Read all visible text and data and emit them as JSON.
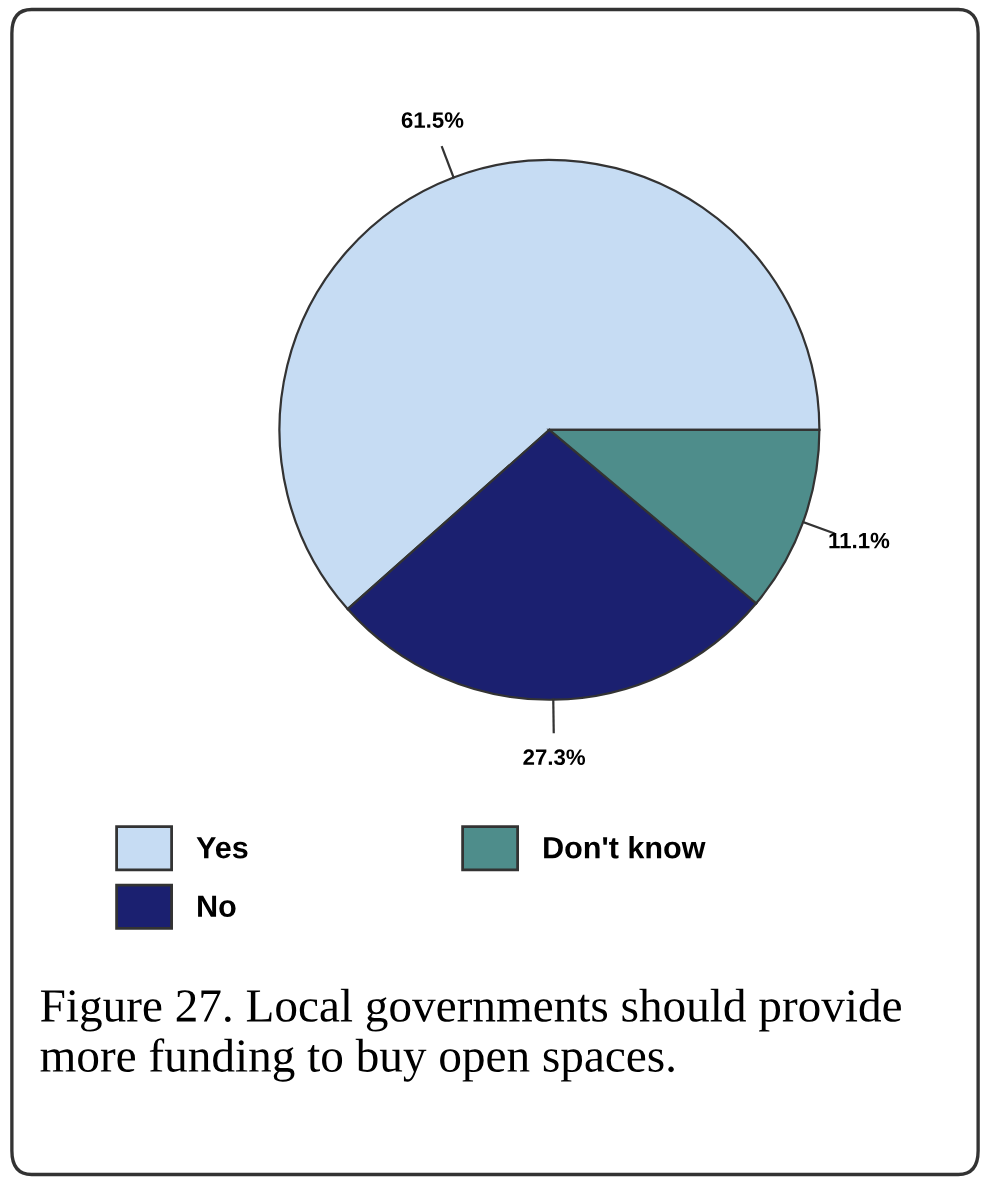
{
  "chart_data": {
    "type": "pie",
    "title": "Figure 27. Local governments should provide more funding to buy open spaces.",
    "categories": [
      "Yes",
      "No",
      "Don't know"
    ],
    "values": [
      61.5,
      27.3,
      11.1
    ],
    "value_labels": [
      "61.5%",
      "27.3%",
      "11.1%"
    ],
    "colors": [
      "#c6dcf3",
      "#1b2070",
      "#4e8d8b"
    ],
    "legend": "bottom"
  }
}
